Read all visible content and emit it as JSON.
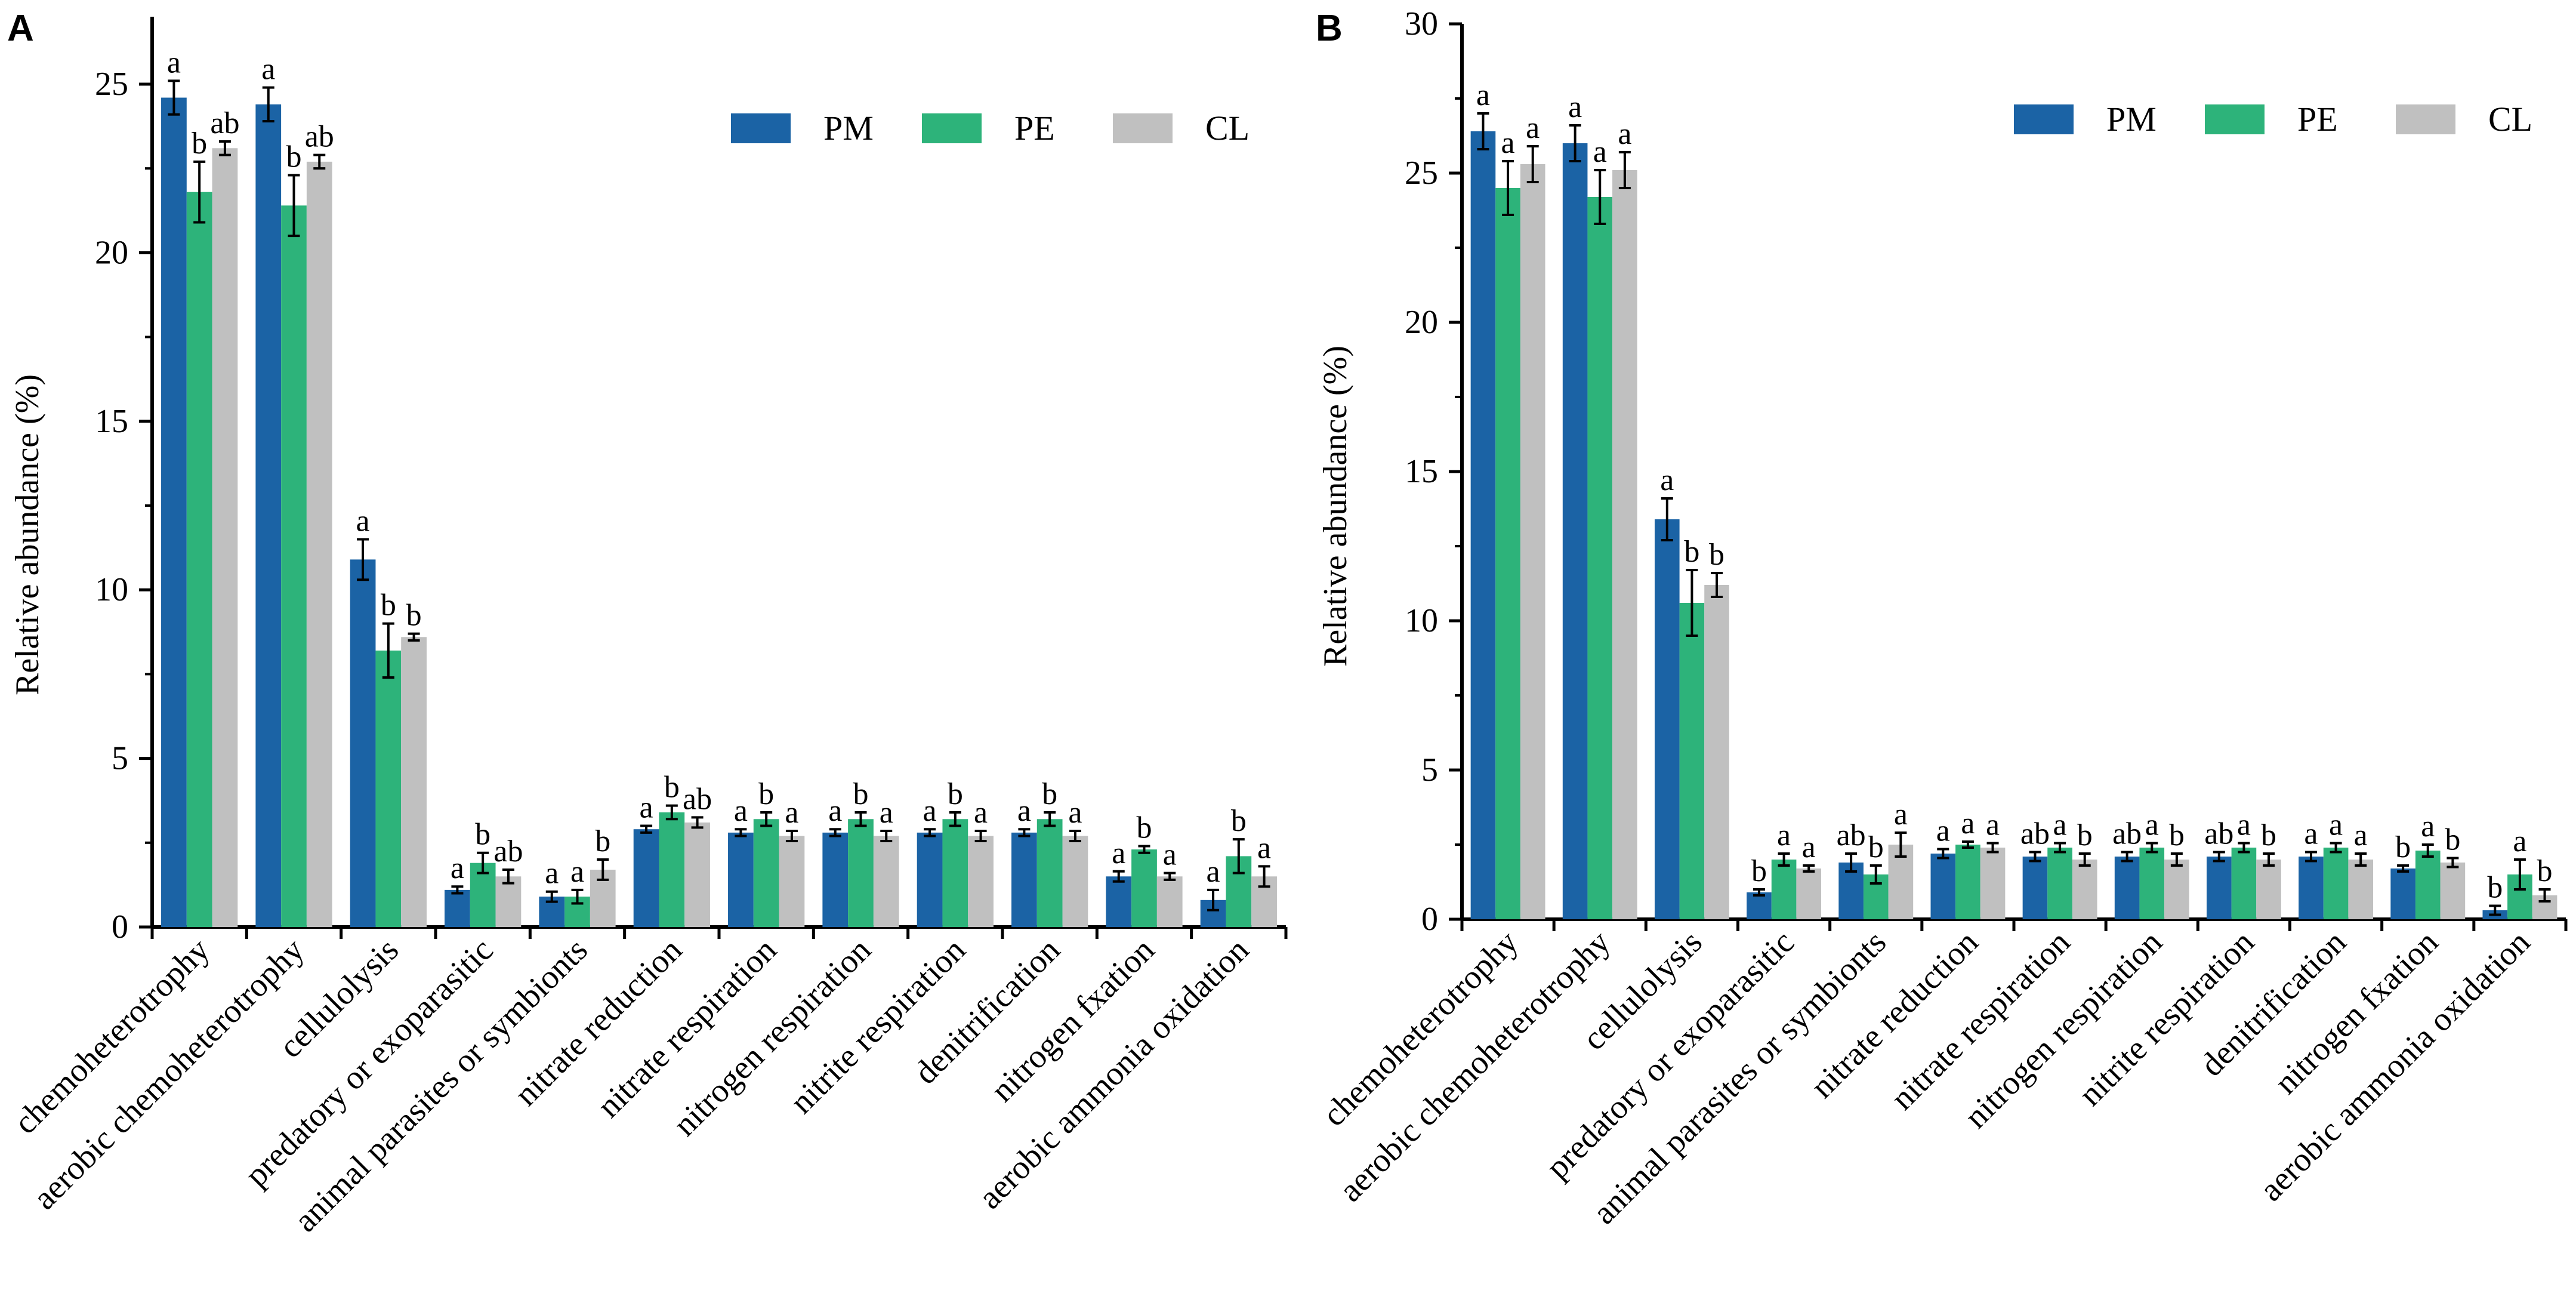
{
  "chart_data": [
    {
      "panel": "A",
      "type": "bar",
      "ylabel": "Relative abundance (%)",
      "ylim": [
        0,
        27
      ],
      "yticks": [
        0,
        5,
        10,
        15,
        20,
        25
      ],
      "categories": [
        "chemoheterotrophy",
        "aerobic chemoheterotrophy",
        "cellulolysis",
        "predatory or exoparasitic",
        "animal parasites or symbionts",
        "nitrate reduction",
        "nitrate respiration",
        "nitrogen respiration",
        "nitrite respiration",
        "denitrification",
        "nitrogen fxation",
        "aerobic ammonia oxidation"
      ],
      "legend": {
        "position": "top-right"
      },
      "series": [
        {
          "name": "PM",
          "color": "#1b63a5",
          "values": [
            24.6,
            24.4,
            10.9,
            1.1,
            0.9,
            2.9,
            2.8,
            2.8,
            2.8,
            2.8,
            1.5,
            0.8
          ],
          "errors": [
            0.5,
            0.5,
            0.6,
            0.1,
            0.15,
            0.1,
            0.1,
            0.1,
            0.1,
            0.1,
            0.15,
            0.3
          ],
          "sig": [
            "a",
            "a",
            "a",
            "a",
            "a",
            "a",
            "a",
            "a",
            "a",
            "a",
            "a",
            "a"
          ]
        },
        {
          "name": "PE",
          "color": "#2db37a",
          "values": [
            21.8,
            21.4,
            8.2,
            1.9,
            0.9,
            3.4,
            3.2,
            3.2,
            3.2,
            3.2,
            2.3,
            2.1
          ],
          "errors": [
            0.9,
            0.9,
            0.8,
            0.3,
            0.2,
            0.2,
            0.2,
            0.2,
            0.2,
            0.2,
            0.1,
            0.5
          ],
          "sig": [
            "b",
            "b",
            "b",
            "b",
            "a",
            "b",
            "b",
            "b",
            "b",
            "b",
            "b",
            "b"
          ]
        },
        {
          "name": "CL",
          "color": "#c0c0c0",
          "values": [
            23.1,
            22.7,
            8.6,
            1.5,
            1.7,
            3.1,
            2.7,
            2.7,
            2.7,
            2.7,
            1.5,
            1.5
          ],
          "errors": [
            0.2,
            0.2,
            0.1,
            0.2,
            0.3,
            0.15,
            0.15,
            0.15,
            0.15,
            0.15,
            0.1,
            0.3
          ],
          "sig": [
            "ab",
            "ab",
            "b",
            "ab",
            "b",
            "ab",
            "a",
            "a",
            "a",
            "a",
            "a",
            "a"
          ]
        }
      ]
    },
    {
      "panel": "B",
      "type": "bar",
      "ylabel": "Relative abundance (%)",
      "ylim": [
        0,
        30
      ],
      "yticks": [
        0,
        5,
        10,
        15,
        20,
        25,
        30
      ],
      "categories": [
        "chemoheterotrophy",
        "aerobic chemoheterotrophy",
        "cellulolysis",
        "predatory or exoparasitic",
        "animal parasites or symbionts",
        "nitrate reduction",
        "nitrate respiration",
        "nitrogen respiration",
        "nitrite respiration",
        "denitrification",
        "nitrogen fxation",
        "aerobic ammonia oxidation"
      ],
      "legend": {
        "position": "top-right"
      },
      "series": [
        {
          "name": "PM",
          "color": "#1b63a5",
          "values": [
            26.4,
            26.0,
            13.4,
            0.9,
            1.9,
            2.2,
            2.1,
            2.1,
            2.1,
            2.1,
            1.7,
            0.3
          ],
          "errors": [
            0.6,
            0.6,
            0.7,
            0.1,
            0.3,
            0.15,
            0.15,
            0.15,
            0.15,
            0.15,
            0.1,
            0.15
          ],
          "sig": [
            "a",
            "a",
            "a",
            "b",
            "ab",
            "a",
            "ab",
            "ab",
            "ab",
            "a",
            "b",
            "b"
          ]
        },
        {
          "name": "PE",
          "color": "#2db37a",
          "values": [
            24.5,
            24.2,
            10.6,
            2.0,
            1.5,
            2.5,
            2.4,
            2.4,
            2.4,
            2.4,
            2.3,
            1.5
          ],
          "errors": [
            0.9,
            0.9,
            1.1,
            0.2,
            0.3,
            0.1,
            0.15,
            0.15,
            0.15,
            0.15,
            0.2,
            0.5
          ],
          "sig": [
            "a",
            "a",
            "b",
            "a",
            "b",
            "a",
            "a",
            "a",
            "a",
            "a",
            "a",
            "a"
          ]
        },
        {
          "name": "CL",
          "color": "#c0c0c0",
          "values": [
            25.3,
            25.1,
            11.2,
            1.7,
            2.5,
            2.4,
            2.0,
            2.0,
            2.0,
            2.0,
            1.9,
            0.8
          ],
          "errors": [
            0.6,
            0.6,
            0.4,
            0.1,
            0.4,
            0.15,
            0.2,
            0.2,
            0.2,
            0.2,
            0.15,
            0.2
          ],
          "sig": [
            "a",
            "a",
            "b",
            "a",
            "a",
            "a",
            "b",
            "b",
            "b",
            "a",
            "b",
            "b"
          ]
        }
      ]
    }
  ]
}
